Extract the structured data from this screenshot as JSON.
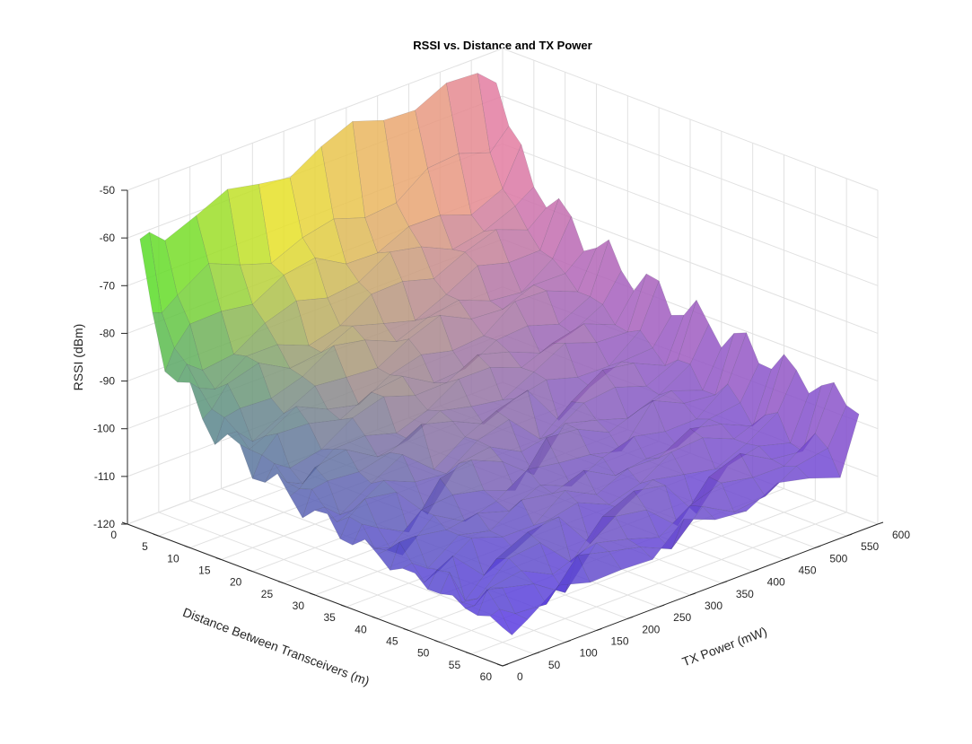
{
  "chart_data": {
    "type": "surface",
    "title": "RSSI vs. Distance and TX Power",
    "xlabel": "Distance Between Transceivers (m)",
    "ylabel": "TX Power (mW)",
    "zlabel": "RSSI (dBm)",
    "xlim": [
      0,
      60
    ],
    "ylim": [
      0,
      600
    ],
    "zlim": [
      -120,
      -50
    ],
    "xticks": [
      "0",
      "5",
      "10",
      "15",
      "20",
      "25",
      "30",
      "35",
      "40",
      "45",
      "50",
      "55",
      "60"
    ],
    "yticks": [
      "0",
      "50",
      "100",
      "150",
      "200",
      "250",
      "300",
      "350",
      "400",
      "450",
      "500",
      "550",
      "600"
    ],
    "zticks": [
      "-50",
      "-60",
      "-70",
      "-80",
      "-90",
      "-100",
      "-110",
      "-120"
    ],
    "grid": true,
    "tx_power": [
      10,
      25,
      50,
      100,
      150,
      200,
      250,
      300,
      350,
      400,
      450,
      500,
      550,
      580
    ],
    "rssi_at_1m": [
      -63,
      -61,
      -60,
      -58,
      -57.5,
      -57,
      -56.5,
      -56,
      -55.5,
      -55,
      -54.5,
      -54,
      -53.5,
      -53
    ],
    "rssi_at_60m": [
      -113,
      -112,
      -112,
      -110,
      -110,
      -109,
      -108,
      -108,
      -107,
      -107,
      -106,
      -106,
      -105,
      -95
    ]
  }
}
